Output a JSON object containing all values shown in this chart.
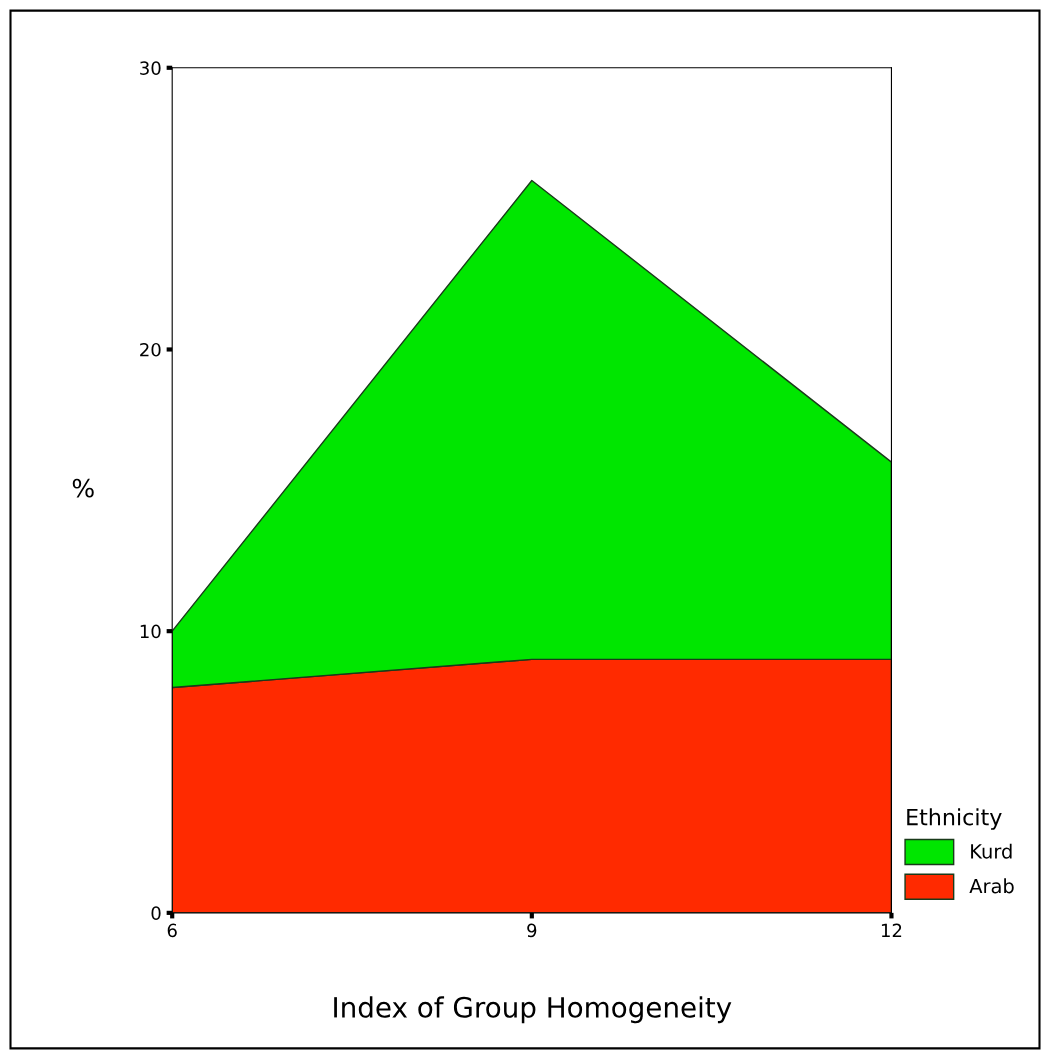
{
  "chart_data": {
    "type": "area",
    "stacked": true,
    "xlabel": "Index of Group Homogeneity",
    "ylabel": "%",
    "legend_title": "Ethnicity",
    "legend": "bottom right",
    "x": [
      6,
      9,
      12
    ],
    "xlim": [
      6,
      12
    ],
    "xticks": [
      6,
      9,
      12
    ],
    "ylim": [
      0,
      30
    ],
    "yticks": [
      0,
      10,
      20,
      30
    ],
    "grid": false,
    "series": [
      {
        "name": "Arab",
        "color": "#ff2a00",
        "values": [
          8,
          9,
          9
        ]
      },
      {
        "name": "Kurd",
        "color": "#00e600",
        "values": [
          2,
          17,
          7
        ]
      }
    ]
  }
}
